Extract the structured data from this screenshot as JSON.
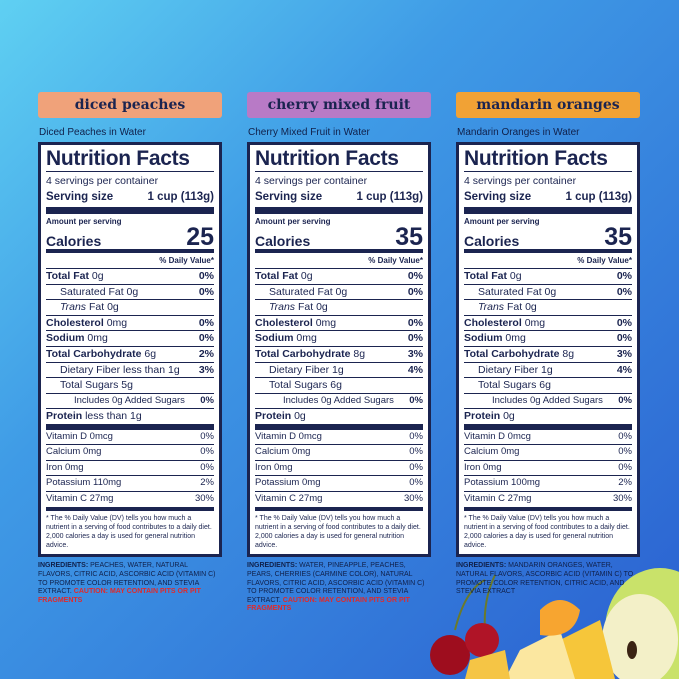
{
  "panels": [
    {
      "badge": "diced peaches",
      "subtitle": "Diced Peaches in Water",
      "label": {
        "title": "Nutrition Facts",
        "servings": "4 servings per container",
        "serving_size_label": "Serving size",
        "serving_size": "1 cup (113g)",
        "amount_label": "Amount per serving",
        "calories_label": "Calories",
        "calories": "25",
        "dv_header": "% Daily Value*",
        "rows": [
          {
            "kind": "main",
            "name": "Total Fat",
            "amount": "0g",
            "dv": "0%"
          },
          {
            "kind": "sub",
            "name": "Saturated Fat",
            "amount": "0g",
            "dv": "0%"
          },
          {
            "kind": "sub",
            "prefix": "Trans",
            "name": "Fat",
            "amount": "0g"
          },
          {
            "kind": "main",
            "name": "Cholesterol",
            "amount": "0mg",
            "dv": "0%"
          },
          {
            "kind": "main",
            "name": "Sodium",
            "amount": "0mg",
            "dv": "0%"
          },
          {
            "kind": "main",
            "name": "Total Carbohydrate",
            "amount": "6g",
            "dv": "2%"
          },
          {
            "kind": "sub",
            "name": "Dietary Fiber",
            "amount": "less than 1g",
            "dv": "3%"
          },
          {
            "kind": "sub",
            "name": "Total Sugars",
            "amount": "5g"
          },
          {
            "kind": "sub2",
            "name": "Includes 0g Added Sugars",
            "dv": "0%"
          },
          {
            "kind": "main",
            "name": "Protein",
            "amount": "less than 1g"
          }
        ],
        "vitamins": [
          {
            "name": "Vitamin D",
            "amount": "0mcg",
            "dv": "0%"
          },
          {
            "name": "Calcium",
            "amount": "0mg",
            "dv": "0%"
          },
          {
            "name": "Iron",
            "amount": "0mg",
            "dv": "0%"
          },
          {
            "name": "Potassium",
            "amount": "110mg",
            "dv": "2%"
          },
          {
            "name": "Vitamin C",
            "amount": "27mg",
            "dv": "30%"
          }
        ],
        "footnote": "* The % Daily Value (DV) tells you how much a nutrient in a serving of food contributes to a daily diet. 2,000 calories a day is used for general nutrition advice."
      },
      "ingredients_label": "INGREDIENTS:",
      "ingredients": "PEACHES, WATER, NATURAL FLAVORS, CITRIC ACID, ASCORBIC ACID (VITAMIN C) TO PROMOTE COLOR RETENTION, AND STEVIA EXTRACT.",
      "caution": "CAUTION: MAY CONTAIN PITS OR PIT FRAGMENTS"
    },
    {
      "badge": "cherry mixed fruit",
      "subtitle": "Cherry Mixed Fruit in Water",
      "label": {
        "title": "Nutrition Facts",
        "servings": "4 servings per container",
        "serving_size_label": "Serving size",
        "serving_size": "1 cup (113g)",
        "amount_label": "Amount per serving",
        "calories_label": "Calories",
        "calories": "35",
        "dv_header": "% Daily Value*",
        "rows": [
          {
            "kind": "main",
            "name": "Total Fat",
            "amount": "0g",
            "dv": "0%"
          },
          {
            "kind": "sub",
            "name": "Saturated Fat",
            "amount": "0g",
            "dv": "0%"
          },
          {
            "kind": "sub",
            "prefix": "Trans",
            "name": "Fat",
            "amount": "0g"
          },
          {
            "kind": "main",
            "name": "Cholesterol",
            "amount": "0mg",
            "dv": "0%"
          },
          {
            "kind": "main",
            "name": "Sodium",
            "amount": "0mg",
            "dv": "0%"
          },
          {
            "kind": "main",
            "name": "Total Carbohydrate",
            "amount": "8g",
            "dv": "3%"
          },
          {
            "kind": "sub",
            "name": "Dietary Fiber",
            "amount": "1g",
            "dv": "4%"
          },
          {
            "kind": "sub",
            "name": "Total Sugars",
            "amount": "6g"
          },
          {
            "kind": "sub2",
            "name": "Includes 0g Added Sugars",
            "dv": "0%"
          },
          {
            "kind": "main",
            "name": "Protein",
            "amount": "0g"
          }
        ],
        "vitamins": [
          {
            "name": "Vitamin D",
            "amount": "0mcg",
            "dv": "0%"
          },
          {
            "name": "Calcium",
            "amount": "0mg",
            "dv": "0%"
          },
          {
            "name": "Iron",
            "amount": "0mg",
            "dv": "0%"
          },
          {
            "name": "Potassium",
            "amount": "0mg",
            "dv": "0%"
          },
          {
            "name": "Vitamin C",
            "amount": "27mg",
            "dv": "30%"
          }
        ],
        "footnote": "* The % Daily Value (DV) tells you how much a nutrient in a serving of food contributes to a daily diet. 2,000 calories a day is used for general nutrition advice."
      },
      "ingredients_label": "INGREDIENTS:",
      "ingredients": "WATER, PINEAPPLE, PEACHES, PEARS, CHERRIES (CARMINE COLOR), NATURAL FLAVORS, CITRIC ACID, ASCORBIC ACID (VITAMIN C) TO PROMOTE COLOR RETENTION, AND STEVIA EXTRACT.",
      "caution": "CAUTION: MAY CONTAIN PITS OR PIT FRAGMENTS"
    },
    {
      "badge": "mandarin oranges",
      "subtitle": "Mandarin Oranges in Water",
      "label": {
        "title": "Nutrition Facts",
        "servings": "4 servings per container",
        "serving_size_label": "Serving size",
        "serving_size": "1 cup (113g)",
        "amount_label": "Amount per serving",
        "calories_label": "Calories",
        "calories": "35",
        "dv_header": "% Daily Value*",
        "rows": [
          {
            "kind": "main",
            "name": "Total Fat",
            "amount": "0g",
            "dv": "0%"
          },
          {
            "kind": "sub",
            "name": "Saturated Fat",
            "amount": "0g",
            "dv": "0%"
          },
          {
            "kind": "sub",
            "prefix": "Trans",
            "name": "Fat",
            "amount": "0g"
          },
          {
            "kind": "main",
            "name": "Cholesterol",
            "amount": "0mg",
            "dv": "0%"
          },
          {
            "kind": "main",
            "name": "Sodium",
            "amount": "0mg",
            "dv": "0%"
          },
          {
            "kind": "main",
            "name": "Total Carbohydrate",
            "amount": "8g",
            "dv": "3%"
          },
          {
            "kind": "sub",
            "name": "Dietary Fiber",
            "amount": "1g",
            "dv": "4%"
          },
          {
            "kind": "sub",
            "name": "Total Sugars",
            "amount": "6g"
          },
          {
            "kind": "sub2",
            "name": "Includes 0g Added Sugars",
            "dv": "0%"
          },
          {
            "kind": "main",
            "name": "Protein",
            "amount": "0g"
          }
        ],
        "vitamins": [
          {
            "name": "Vitamin D",
            "amount": "0mcg",
            "dv": "0%"
          },
          {
            "name": "Calcium",
            "amount": "0mg",
            "dv": "0%"
          },
          {
            "name": "Iron",
            "amount": "0mg",
            "dv": "0%"
          },
          {
            "name": "Potassium",
            "amount": "100mg",
            "dv": "2%"
          },
          {
            "name": "Vitamin C",
            "amount": "27mg",
            "dv": "30%"
          }
        ],
        "footnote": "* The % Daily Value (DV) tells you how much a nutrient in a serving of food contributes to a daily diet. 2,000 calories a day is used for general nutrition advice."
      },
      "ingredients_label": "INGREDIENTS:",
      "ingredients": "MANDARIN ORANGES, WATER, NATURAL FLAVORS, ASCORBIC ACID (VITAMIN C) TO PROMOTE COLOR RETENTION, CITRIC ACID, AND STEVIA EXTRACT"
    }
  ]
}
